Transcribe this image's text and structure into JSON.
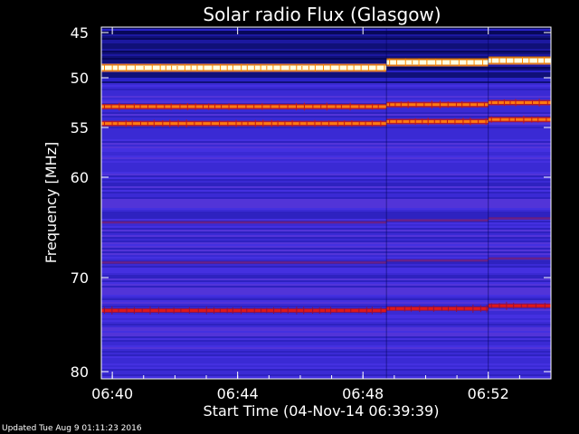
{
  "footer": "Updated Tue Aug  9 01:11:23 2016",
  "colors": {
    "background": "#000000",
    "axis": "#ffffff"
  },
  "chart_data": {
    "type": "heatmap",
    "title": "Solar radio Flux (Glasgow)",
    "xlabel": "Start Time (04-Nov-14 06:39:39)",
    "ylabel": "Frequency [MHz]",
    "x_unit": "time of day (hh:mm), 04-Nov-14",
    "xlim": [
      "06:39:39",
      "06:54:00"
    ],
    "ylim": [
      80,
      44
    ],
    "x_ticks": [
      "06:40",
      "06:44",
      "06:48",
      "06:52"
    ],
    "y_ticks": [
      45,
      50,
      55,
      60,
      70,
      80
    ],
    "y_scale": "nonlinear (reciprocal-like)",
    "colormap": [
      "#000020",
      "#10106a",
      "#2a1fb0",
      "#4a2ee0",
      "#7a2a9a",
      "#c02020",
      "#ff6a00",
      "#ffffa0"
    ],
    "background_level": "dark blue / violet",
    "segments": [
      {
        "start": "06:39:39",
        "end": "06:48:45"
      },
      {
        "start": "06:48:45",
        "end": "06:52:00"
      },
      {
        "start": "06:52:00",
        "end": "06:54:00"
      }
    ],
    "bands": [
      {
        "frequency_mhz": [
          48.9,
          48.3,
          48.1
        ],
        "intensity": "saturated (white/yellow)"
      },
      {
        "frequency_mhz": [
          52.9,
          52.7,
          52.5
        ],
        "intensity": "strong (orange)"
      },
      {
        "frequency_mhz": [
          54.6,
          54.4,
          54.2
        ],
        "intensity": "strong (orange)"
      },
      {
        "frequency_mhz": [
          73.5,
          73.3,
          73.0
        ],
        "intensity": "moderate (red)"
      },
      {
        "frequency_mhz": [
          64.5,
          64.3,
          64.1
        ],
        "intensity": "weak (violet)"
      },
      {
        "frequency_mhz": [
          68.5,
          68.3,
          68.1
        ],
        "intensity": "weak (violet)"
      }
    ],
    "high_background_range_mhz": [
      44,
      50.5
    ]
  }
}
